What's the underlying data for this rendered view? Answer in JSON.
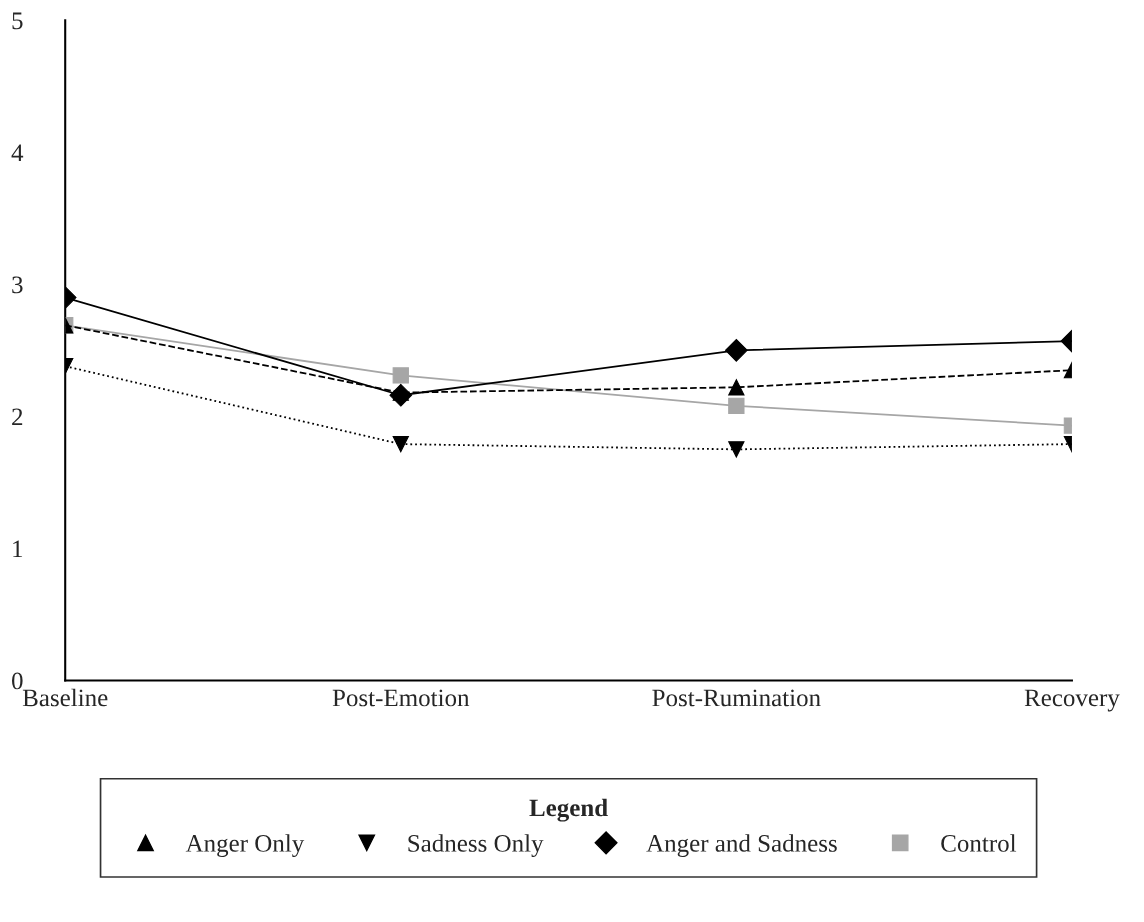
{
  "chart_data": {
    "type": "line",
    "categories": [
      "Baseline",
      "Post-Emotion",
      "Post-Rumination",
      "Recovery"
    ],
    "series": [
      {
        "name": "Anger Only",
        "color": "#000000",
        "marker": "triangle",
        "line_style": "dashed",
        "values": [
          2.69,
          2.18,
          2.22,
          2.35
        ]
      },
      {
        "name": "Sadness Only",
        "color": "#000000",
        "marker": "triangle-down",
        "line_style": "dotted",
        "values": [
          2.38,
          1.79,
          1.75,
          1.79
        ]
      },
      {
        "name": "Anger and Sadness",
        "color": "#000000",
        "marker": "diamond",
        "line_style": "solid",
        "values": [
          2.9,
          2.16,
          2.5,
          2.57
        ]
      },
      {
        "name": "Control",
        "color": "#a6a6a6",
        "marker": "square",
        "line_style": "solid",
        "values": [
          2.69,
          2.31,
          2.08,
          1.93
        ]
      }
    ],
    "ylim": [
      0,
      5
    ],
    "yticks": [
      0,
      1,
      2,
      3,
      4,
      5
    ],
    "grid": false,
    "legend": "bottom",
    "legend_title": "Legend"
  }
}
